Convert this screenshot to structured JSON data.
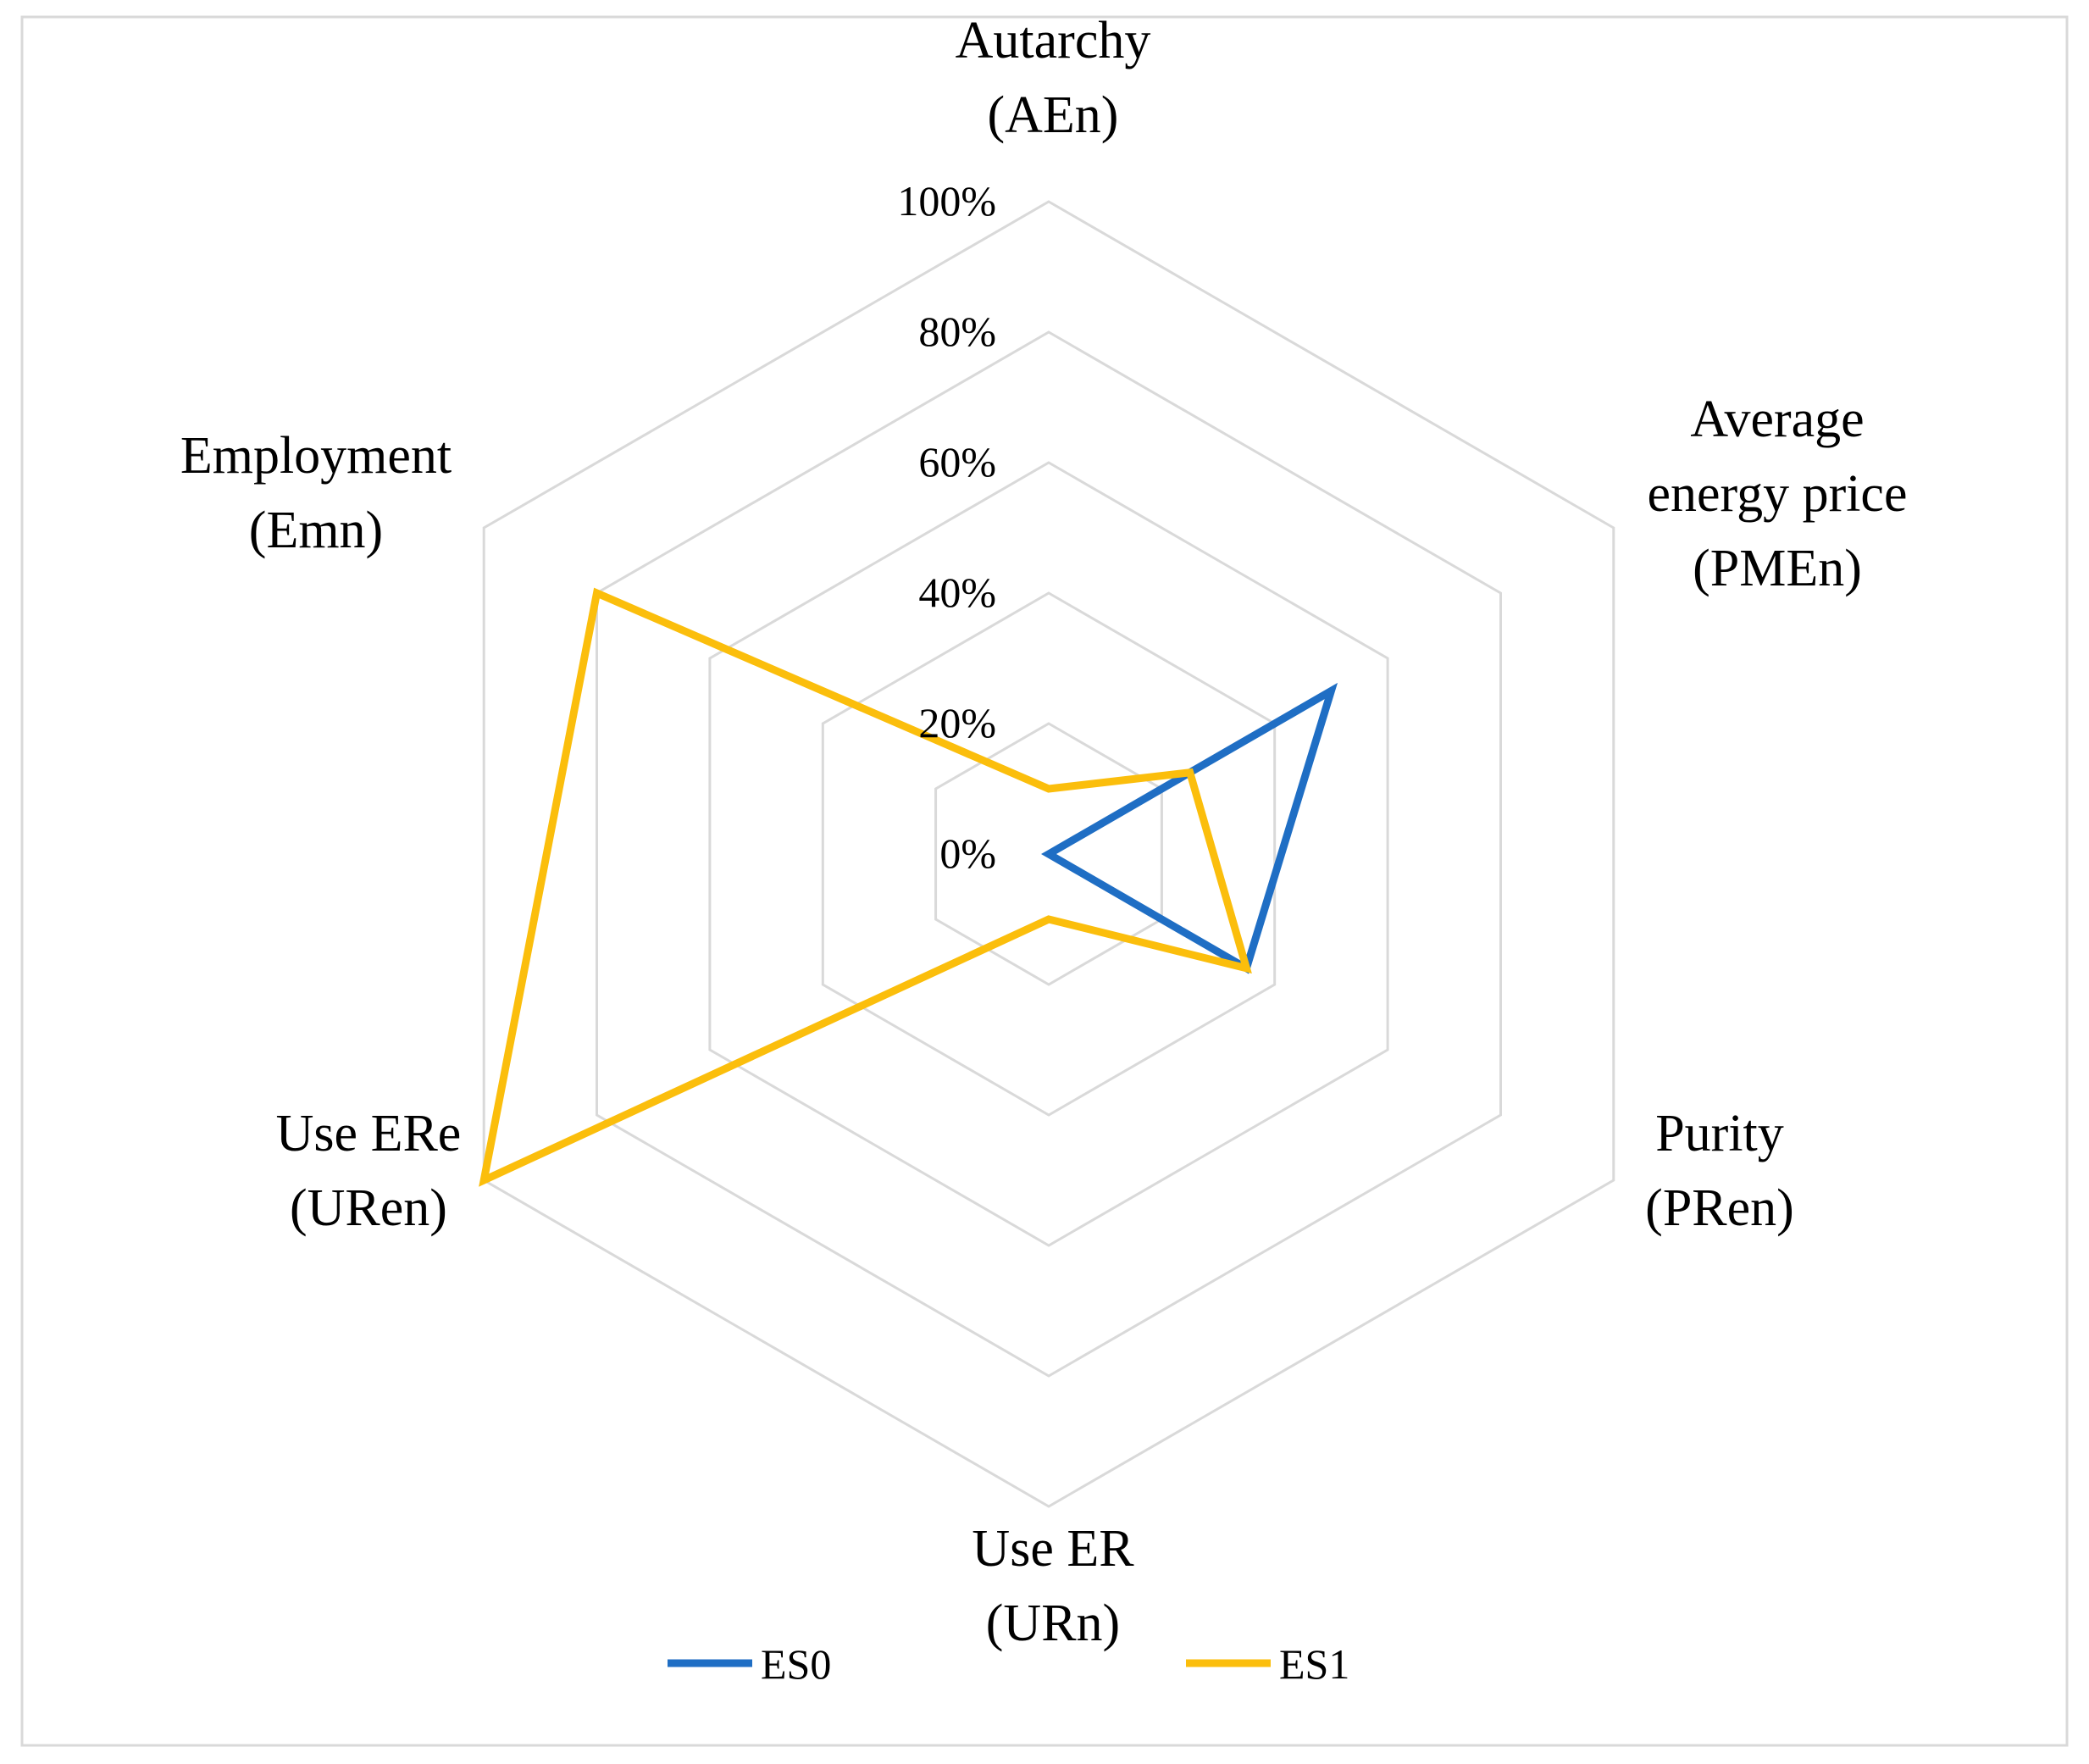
{
  "chart_data": {
    "type": "radar",
    "axes": [
      {
        "id": "autarchy",
        "lines": [
          "Autarchy",
          "(AEn)"
        ]
      },
      {
        "id": "average-energy-price",
        "lines": [
          "Average",
          "energy price",
          "(PMEn)"
        ]
      },
      {
        "id": "purity",
        "lines": [
          "Purity",
          "(PRen)"
        ]
      },
      {
        "id": "use-er",
        "lines": [
          "Use ER",
          "(URn)"
        ]
      },
      {
        "id": "use-ere",
        "lines": [
          "Use ERe",
          "(URen)"
        ]
      },
      {
        "id": "employment",
        "lines": [
          "Employment",
          "(Emn)"
        ]
      }
    ],
    "ticks": [
      0,
      20,
      40,
      60,
      80,
      100
    ],
    "tick_labels": [
      "0%",
      "20%",
      "40%",
      "60%",
      "80%",
      "100%"
    ],
    "range": [
      0,
      100
    ],
    "grid": true,
    "series": [
      {
        "name": "ES0",
        "color": "#1f6ec4",
        "values": [
          0,
          50,
          35,
          0,
          0,
          0
        ]
      },
      {
        "name": "ES1",
        "color": "#fbbe0c",
        "values": [
          10,
          25,
          35,
          10,
          100,
          80
        ]
      }
    ],
    "legend_position": "bottom"
  }
}
